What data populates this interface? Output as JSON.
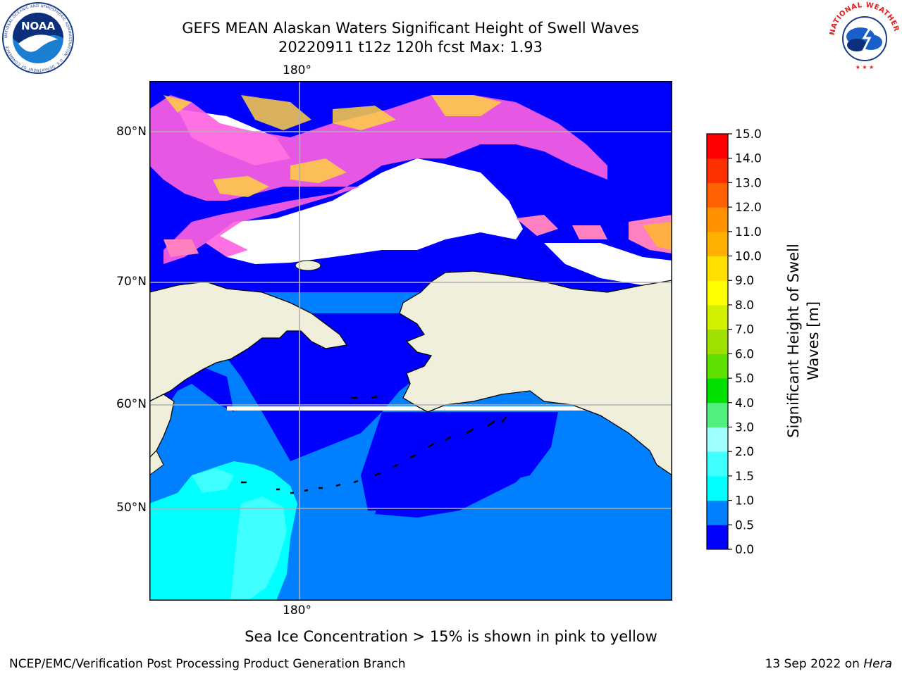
{
  "title": {
    "line1": "GEFS MEAN Alaskan Waters Significant Height of Swell Waves",
    "line2": "20220911 t12z 120h fcst   Max: 1.93"
  },
  "map": {
    "meridian_label_top": "180°",
    "meridian_label_bottom": "180°",
    "lat_labels": [
      "80°N",
      "70°N",
      "60°N",
      "50°N"
    ],
    "ocean_colors": {
      "0.0-0.5": "#0000ff",
      "0.5-1.0": "#0080ff",
      "1.0-1.5": "#00ffff",
      "1.5-2.0": "#40ffff"
    },
    "land_color": "#efefdb",
    "ice_colors": [
      "#ff40ff",
      "#ff80c0",
      "#ffb040",
      "#ffd040"
    ]
  },
  "colorbar": {
    "title": "Significant Height of Swell Waves [m]",
    "title_line1": "Significant Height of Swell",
    "title_line2": "Waves [m]",
    "ticks": [
      "0.0",
      "0.5",
      "1.0",
      "1.5",
      "2.0",
      "3.0",
      "4.0",
      "5.0",
      "6.0",
      "7.0",
      "8.0",
      "9.0",
      "10.0",
      "11.0",
      "12.0",
      "13.0",
      "14.0",
      "15.0"
    ],
    "colors": [
      "#0000ff",
      "#0080ff",
      "#00ffff",
      "#40ffff",
      "#a0ffff",
      "#50f080",
      "#00e000",
      "#60e000",
      "#a0e000",
      "#d0f000",
      "#ffff00",
      "#ffe000",
      "#ffb000",
      "#ff9000",
      "#ff6000",
      "#ff3000",
      "#ff0000"
    ]
  },
  "note": "Sea Ice Concentration > 15% is shown in pink to yellow",
  "footer": {
    "left": "NCEP/EMC/Verification Post Processing Product Generation Branch",
    "date": "13 Sep 2022 on ",
    "machine": "Hera"
  },
  "logos": {
    "noaa_text": "NOAA",
    "noaa_ring": "NATIONAL OCEANIC AND ATMOSPHERIC ADMINISTRATION · U.S. DEPARTMENT OF COMMERCE",
    "nws_ring": "NATIONAL WEATHER SERVICE"
  }
}
